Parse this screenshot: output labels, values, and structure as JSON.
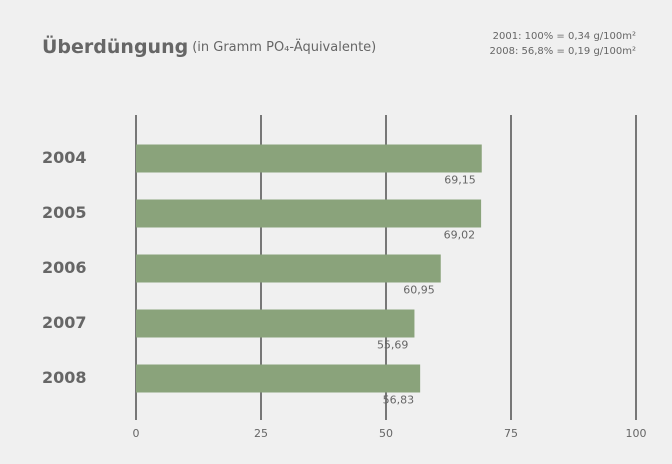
{
  "chart_data": {
    "type": "bar",
    "orientation": "horizontal",
    "title": "Überdüngung",
    "subtitle": "(in Gramm PO₄-Äquivalente)",
    "notes": [
      "2001: 100% = 0,34 g/100m²",
      "2008: 56,8% = 0,19 g/100m²"
    ],
    "categories": [
      "2004",
      "2005",
      "2006",
      "2007",
      "2008"
    ],
    "values": [
      69.15,
      69.02,
      60.95,
      55.69,
      56.83
    ],
    "value_labels": [
      "69,15",
      "69,02",
      "60,95",
      "55,69",
      "56,83"
    ],
    "color": "#8aa37b",
    "xlim": [
      0,
      100
    ],
    "xticks": [
      0,
      25,
      50,
      75,
      100
    ],
    "grid": true
  }
}
